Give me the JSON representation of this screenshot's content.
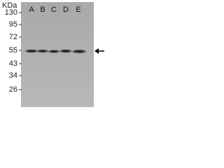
{
  "kda_label": "KDa",
  "lanes": [
    "A",
    "B",
    "C",
    "D",
    "E"
  ],
  "markers": [
    "130",
    "95",
    "72",
    "55",
    "43",
    "34",
    "26"
  ]
}
